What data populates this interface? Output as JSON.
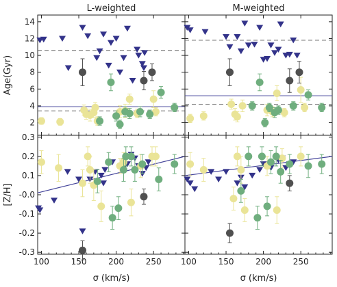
{
  "chart_data": [
    {
      "type": "scatter",
      "title": "L-weighted",
      "ylabel": "Age(Gyr)",
      "xlabel": "",
      "xlim": [
        95,
        292
      ],
      "ylim": [
        0.5,
        14.8
      ],
      "xticks": [
        100,
        150,
        200,
        250
      ],
      "yticks": [
        2,
        4,
        6,
        8,
        10,
        12,
        14
      ],
      "ytick_labels": [
        "2",
        "4",
        "6",
        "8",
        "10",
        "12",
        "14"
      ],
      "hlines": [
        {
          "value": 10.6,
          "style": "dashed",
          "color": "#666666"
        },
        {
          "value": 3.9,
          "style": "solid",
          "color": "#44449a"
        },
        {
          "value": 3.4,
          "style": "dashed",
          "color": "#666666"
        }
      ],
      "fit_line": null,
      "series": [
        {
          "marker": "triangle-down",
          "color": "#33338a",
          "points": [
            [
              98,
              11.8
            ],
            [
              103,
              11.9
            ],
            [
              128,
              12.0
            ],
            [
              136,
              8.5
            ],
            [
              155,
              13.3
            ],
            [
              162,
              12.3
            ],
            [
              174,
              9.7
            ],
            [
              178,
              10.5
            ],
            [
              183,
              12.5
            ],
            [
              190,
              8.8
            ],
            [
              193,
              11.5
            ],
            [
              200,
              12.0
            ],
            [
              205,
              8.0
            ],
            [
              210,
              9.7
            ],
            [
              215,
              13.2
            ],
            [
              222,
              7.0
            ],
            [
              228,
              10.7
            ],
            [
              235,
              9.0
            ],
            [
              237,
              8.5
            ],
            [
              230,
              10.0
            ],
            [
              238,
              10.3
            ]
          ]
        },
        {
          "marker": "circle",
          "color": "#eae497",
          "points": [
            [
              100,
              2.2,
              0.4
            ],
            [
              125,
              2.1,
              0.4
            ],
            [
              157,
              3.5,
              0.6
            ],
            [
              160,
              3.0,
              0.6
            ],
            [
              165,
              2.9,
              0.7
            ],
            [
              170,
              3.2,
              0.6
            ],
            [
              172,
              3.8,
              0.6
            ],
            [
              175,
              2.2,
              0.5
            ],
            [
              205,
              3.3,
              0.7
            ],
            [
              212,
              3.4,
              0.8
            ],
            [
              218,
              4.8,
              0.6
            ],
            [
              228,
              3.1,
              0.5
            ],
            [
              250,
              4.8,
              1.0
            ],
            [
              253,
              3.3,
              0.5
            ]
          ]
        },
        {
          "marker": "circle",
          "color": "#6fae7e",
          "points": [
            [
              178,
              2.2,
              0.5
            ],
            [
              193,
              6.8,
              1.0
            ],
            [
              200,
              2.8,
              0.6
            ],
            [
              205,
              1.8,
              0.5
            ],
            [
              212,
              3.3,
              0.6
            ],
            [
              218,
              3.1,
              0.6
            ],
            [
              232,
              3.3,
              0.6
            ],
            [
              245,
              3.0,
              0.5
            ],
            [
              260,
              5.6,
              0.7
            ],
            [
              278,
              3.8,
              0.5
            ]
          ]
        },
        {
          "marker": "circle",
          "color": "#505050",
          "points": [
            [
              155,
              8.0,
              1.6
            ],
            [
              237,
              7.0,
              1.1
            ],
            [
              248,
              8.0,
              1.0
            ]
          ]
        }
      ]
    },
    {
      "type": "scatter",
      "title": "M-weighted",
      "ylabel": "",
      "xlabel": "",
      "xlim": [
        95,
        292
      ],
      "ylim": [
        0.5,
        14.8
      ],
      "xticks": [
        100,
        150,
        200,
        250
      ],
      "yticks": [
        2,
        4,
        6,
        8,
        10,
        12,
        14
      ],
      "ytick_labels": [
        "",
        "",
        "",
        "",
        "",
        "",
        ""
      ],
      "hlines": [
        {
          "value": 11.8,
          "style": "dashed",
          "color": "#666666"
        },
        {
          "value": 5.2,
          "style": "solid",
          "color": "#44449a"
        },
        {
          "value": 4.2,
          "style": "dashed",
          "color": "#666666"
        }
      ],
      "fit_line": null,
      "series": [
        {
          "marker": "triangle-down",
          "color": "#33338a",
          "points": [
            [
              98,
              13.3
            ],
            [
              102,
              13.0
            ],
            [
              122,
              12.8
            ],
            [
              150,
              12.2
            ],
            [
              155,
              11.0
            ],
            [
              165,
              12.2
            ],
            [
              170,
              10.5
            ],
            [
              175,
              13.8
            ],
            [
              180,
              11.2
            ],
            [
              188,
              11.3
            ],
            [
              195,
              13.3
            ],
            [
              200,
              9.5
            ],
            [
              205,
              9.6
            ],
            [
              210,
              11.2
            ],
            [
              215,
              10.3
            ],
            [
              220,
              10.7
            ],
            [
              223,
              13.7
            ],
            [
              230,
              10.0
            ],
            [
              235,
              10.1
            ],
            [
              240,
              11.8
            ],
            [
              245,
              10.0
            ]
          ]
        },
        {
          "marker": "circle",
          "color": "#eae497",
          "points": [
            [
              102,
              2.5,
              0.5
            ],
            [
              120,
              2.8,
              0.5
            ],
            [
              157,
              4.2,
              0.6
            ],
            [
              162,
              3.0,
              0.7
            ],
            [
              165,
              2.7,
              0.6
            ],
            [
              172,
              4.0,
              0.7
            ],
            [
              205,
              3.5,
              0.7
            ],
            [
              212,
              3.3,
              0.6
            ],
            [
              218,
              5.5,
              0.9
            ],
            [
              228,
              3.2,
              0.5
            ],
            [
              250,
              5.9,
              1.5
            ],
            [
              255,
              3.8,
              0.5
            ]
          ]
        },
        {
          "marker": "circle",
          "color": "#6fae7e",
          "points": [
            [
              185,
              4.0,
              0.5
            ],
            [
              195,
              6.8,
              1.0
            ],
            [
              202,
              2.0,
              0.5
            ],
            [
              208,
              3.8,
              0.5
            ],
            [
              215,
              3.2,
              0.6
            ],
            [
              220,
              3.5,
              0.5
            ],
            [
              240,
              4.0,
              0.5
            ],
            [
              260,
              5.3,
              0.6
            ],
            [
              278,
              3.8,
              0.5
            ]
          ]
        },
        {
          "marker": "circle",
          "color": "#505050",
          "points": [
            [
              155,
              8.0,
              1.6
            ],
            [
              235,
              7.0,
              1.4
            ],
            [
              248,
              8.0,
              1.3
            ]
          ]
        }
      ]
    },
    {
      "type": "scatter",
      "title": "",
      "ylabel": "[Z/H]",
      "xlabel": "σ (km/s)",
      "xlim": [
        95,
        292
      ],
      "ylim": [
        -0.31,
        0.31
      ],
      "xticks": [
        100,
        150,
        200,
        250
      ],
      "xtick_labels": [
        "100",
        "150",
        "200",
        "250"
      ],
      "yticks": [
        -0.3,
        -0.2,
        -0.1,
        0.0,
        0.1,
        0.2,
        0.3
      ],
      "ytick_labels": [
        "-0.3",
        "-0.2",
        "-0.1",
        "-0.0",
        "0.1",
        "0.2",
        "0.3"
      ],
      "hlines": [],
      "fit_line": {
        "x": [
          95,
          292
        ],
        "y": [
          0.01,
          0.2
        ],
        "color": "#44449a"
      },
      "series": [
        {
          "marker": "triangle-down",
          "color": "#33338a",
          "points": [
            [
              96,
              -0.07
            ],
            [
              98,
              -0.08
            ],
            [
              117,
              -0.03
            ],
            [
              135,
              0.12
            ],
            [
              150,
              0.08
            ],
            [
              155,
              -0.19
            ],
            [
              165,
              0.08
            ],
            [
              172,
              0.12
            ],
            [
              180,
              0.1
            ],
            [
              183,
              0.06
            ],
            [
              185,
              0.13
            ],
            [
              195,
              0.17
            ],
            [
              210,
              0.14
            ],
            [
              215,
              0.16
            ],
            [
              220,
              0.21
            ],
            [
              225,
              0.19
            ],
            [
              230,
              0.15
            ],
            [
              235,
              0.11
            ],
            [
              240,
              0.14
            ],
            [
              243,
              0.17
            ]
          ]
        },
        {
          "marker": "circle",
          "color": "#eae497",
          "points": [
            [
              100,
              0.17,
              0.06
            ],
            [
              123,
              0.14,
              0.07
            ],
            [
              155,
              0.06,
              0.07
            ],
            [
              162,
              0.2,
              0.05
            ],
            [
              165,
              0.13,
              0.07
            ],
            [
              170,
              0.05,
              0.08
            ],
            [
              180,
              -0.06,
              0.08
            ],
            [
              205,
              0.15,
              0.04
            ],
            [
              210,
              0.17,
              0.05
            ],
            [
              220,
              -0.04,
              0.07
            ],
            [
              233,
              0.15,
              0.06
            ],
            [
              248,
              0.2,
              0.05
            ],
            [
              253,
              0.2,
              0.05
            ]
          ]
        },
        {
          "marker": "circle",
          "color": "#6fae7e",
          "points": [
            [
              175,
              0.07,
              0.06
            ],
            [
              190,
              0.17,
              0.05
            ],
            [
              195,
              -0.12,
              0.06
            ],
            [
              203,
              -0.07,
              0.06
            ],
            [
              210,
              0.13,
              0.06
            ],
            [
              213,
              0.2,
              0.05
            ],
            [
              220,
              0.2,
              0.05
            ],
            [
              225,
              0.13,
              0.06
            ],
            [
              235,
              0.16,
              0.05
            ],
            [
              257,
              0.08,
              0.06
            ],
            [
              278,
              0.16,
              0.05
            ]
          ]
        },
        {
          "marker": "circle",
          "color": "#505050",
          "points": [
            [
              155,
              -0.29,
              0.05
            ],
            [
              237,
              -0.01,
              0.04
            ]
          ]
        }
      ]
    },
    {
      "type": "scatter",
      "title": "",
      "ylabel": "",
      "xlabel": "σ (km/s)",
      "xlim": [
        95,
        292
      ],
      "ylim": [
        -0.31,
        0.31
      ],
      "xticks": [
        100,
        150,
        200,
        250
      ],
      "xtick_labels": [
        "100",
        "150",
        "200",
        "250"
      ],
      "yticks": [
        -0.3,
        -0.2,
        -0.1,
        0.0,
        0.1,
        0.2,
        0.3
      ],
      "ytick_labels": [
        "",
        "",
        "",
        "",
        "",
        "",
        ""
      ],
      "hlines": [],
      "fit_line": {
        "x": [
          95,
          292
        ],
        "y": [
          0.1,
          0.2
        ],
        "color": "#44449a"
      },
      "series": [
        {
          "marker": "triangle-down",
          "color": "#33338a",
          "points": [
            [
              98,
              0.08
            ],
            [
              102,
              0.06
            ],
            [
              108,
              0.03
            ],
            [
              130,
              0.12
            ],
            [
              140,
              0.08
            ],
            [
              150,
              0.12
            ],
            [
              165,
              0.06
            ],
            [
              170,
              0.09
            ],
            [
              175,
              0.04
            ],
            [
              185,
              0.1
            ],
            [
              195,
              0.13
            ],
            [
              200,
              0.16
            ],
            [
              210,
              0.14
            ],
            [
              220,
              0.18
            ],
            [
              225,
              0.19
            ],
            [
              230,
              0.14
            ],
            [
              235,
              0.16
            ],
            [
              240,
              0.17
            ]
          ]
        },
        {
          "marker": "circle",
          "color": "#eae497",
          "points": [
            [
              102,
              0.16,
              0.06
            ],
            [
              120,
              0.13,
              0.06
            ],
            [
              160,
              -0.02,
              0.06
            ],
            [
              165,
              0.2,
              0.05
            ],
            [
              170,
              0.13,
              0.07
            ],
            [
              175,
              -0.08,
              0.06
            ],
            [
              205,
              0.15,
              0.05
            ],
            [
              218,
              -0.08,
              0.07
            ],
            [
              225,
              0.19,
              0.05
            ],
            [
              250,
              0.2,
              0.05
            ]
          ]
        },
        {
          "marker": "circle",
          "color": "#6fae7e",
          "points": [
            [
              170,
              0.02,
              0.06
            ],
            [
              180,
              0.2,
              0.05
            ],
            [
              192,
              -0.12,
              0.06
            ],
            [
              198,
              0.2,
              0.05
            ],
            [
              205,
              -0.06,
              0.05
            ],
            [
              210,
              0.17,
              0.06
            ],
            [
              217,
              0.2,
              0.05
            ],
            [
              223,
              0.12,
              0.06
            ],
            [
              235,
              0.16,
              0.05
            ],
            [
              260,
              0.15,
              0.06
            ],
            [
              278,
              0.16,
              0.05
            ]
          ]
        },
        {
          "marker": "circle",
          "color": "#505050",
          "points": [
            [
              155,
              -0.2,
              0.05
            ],
            [
              235,
              0.06,
              0.04
            ]
          ]
        }
      ]
    }
  ]
}
